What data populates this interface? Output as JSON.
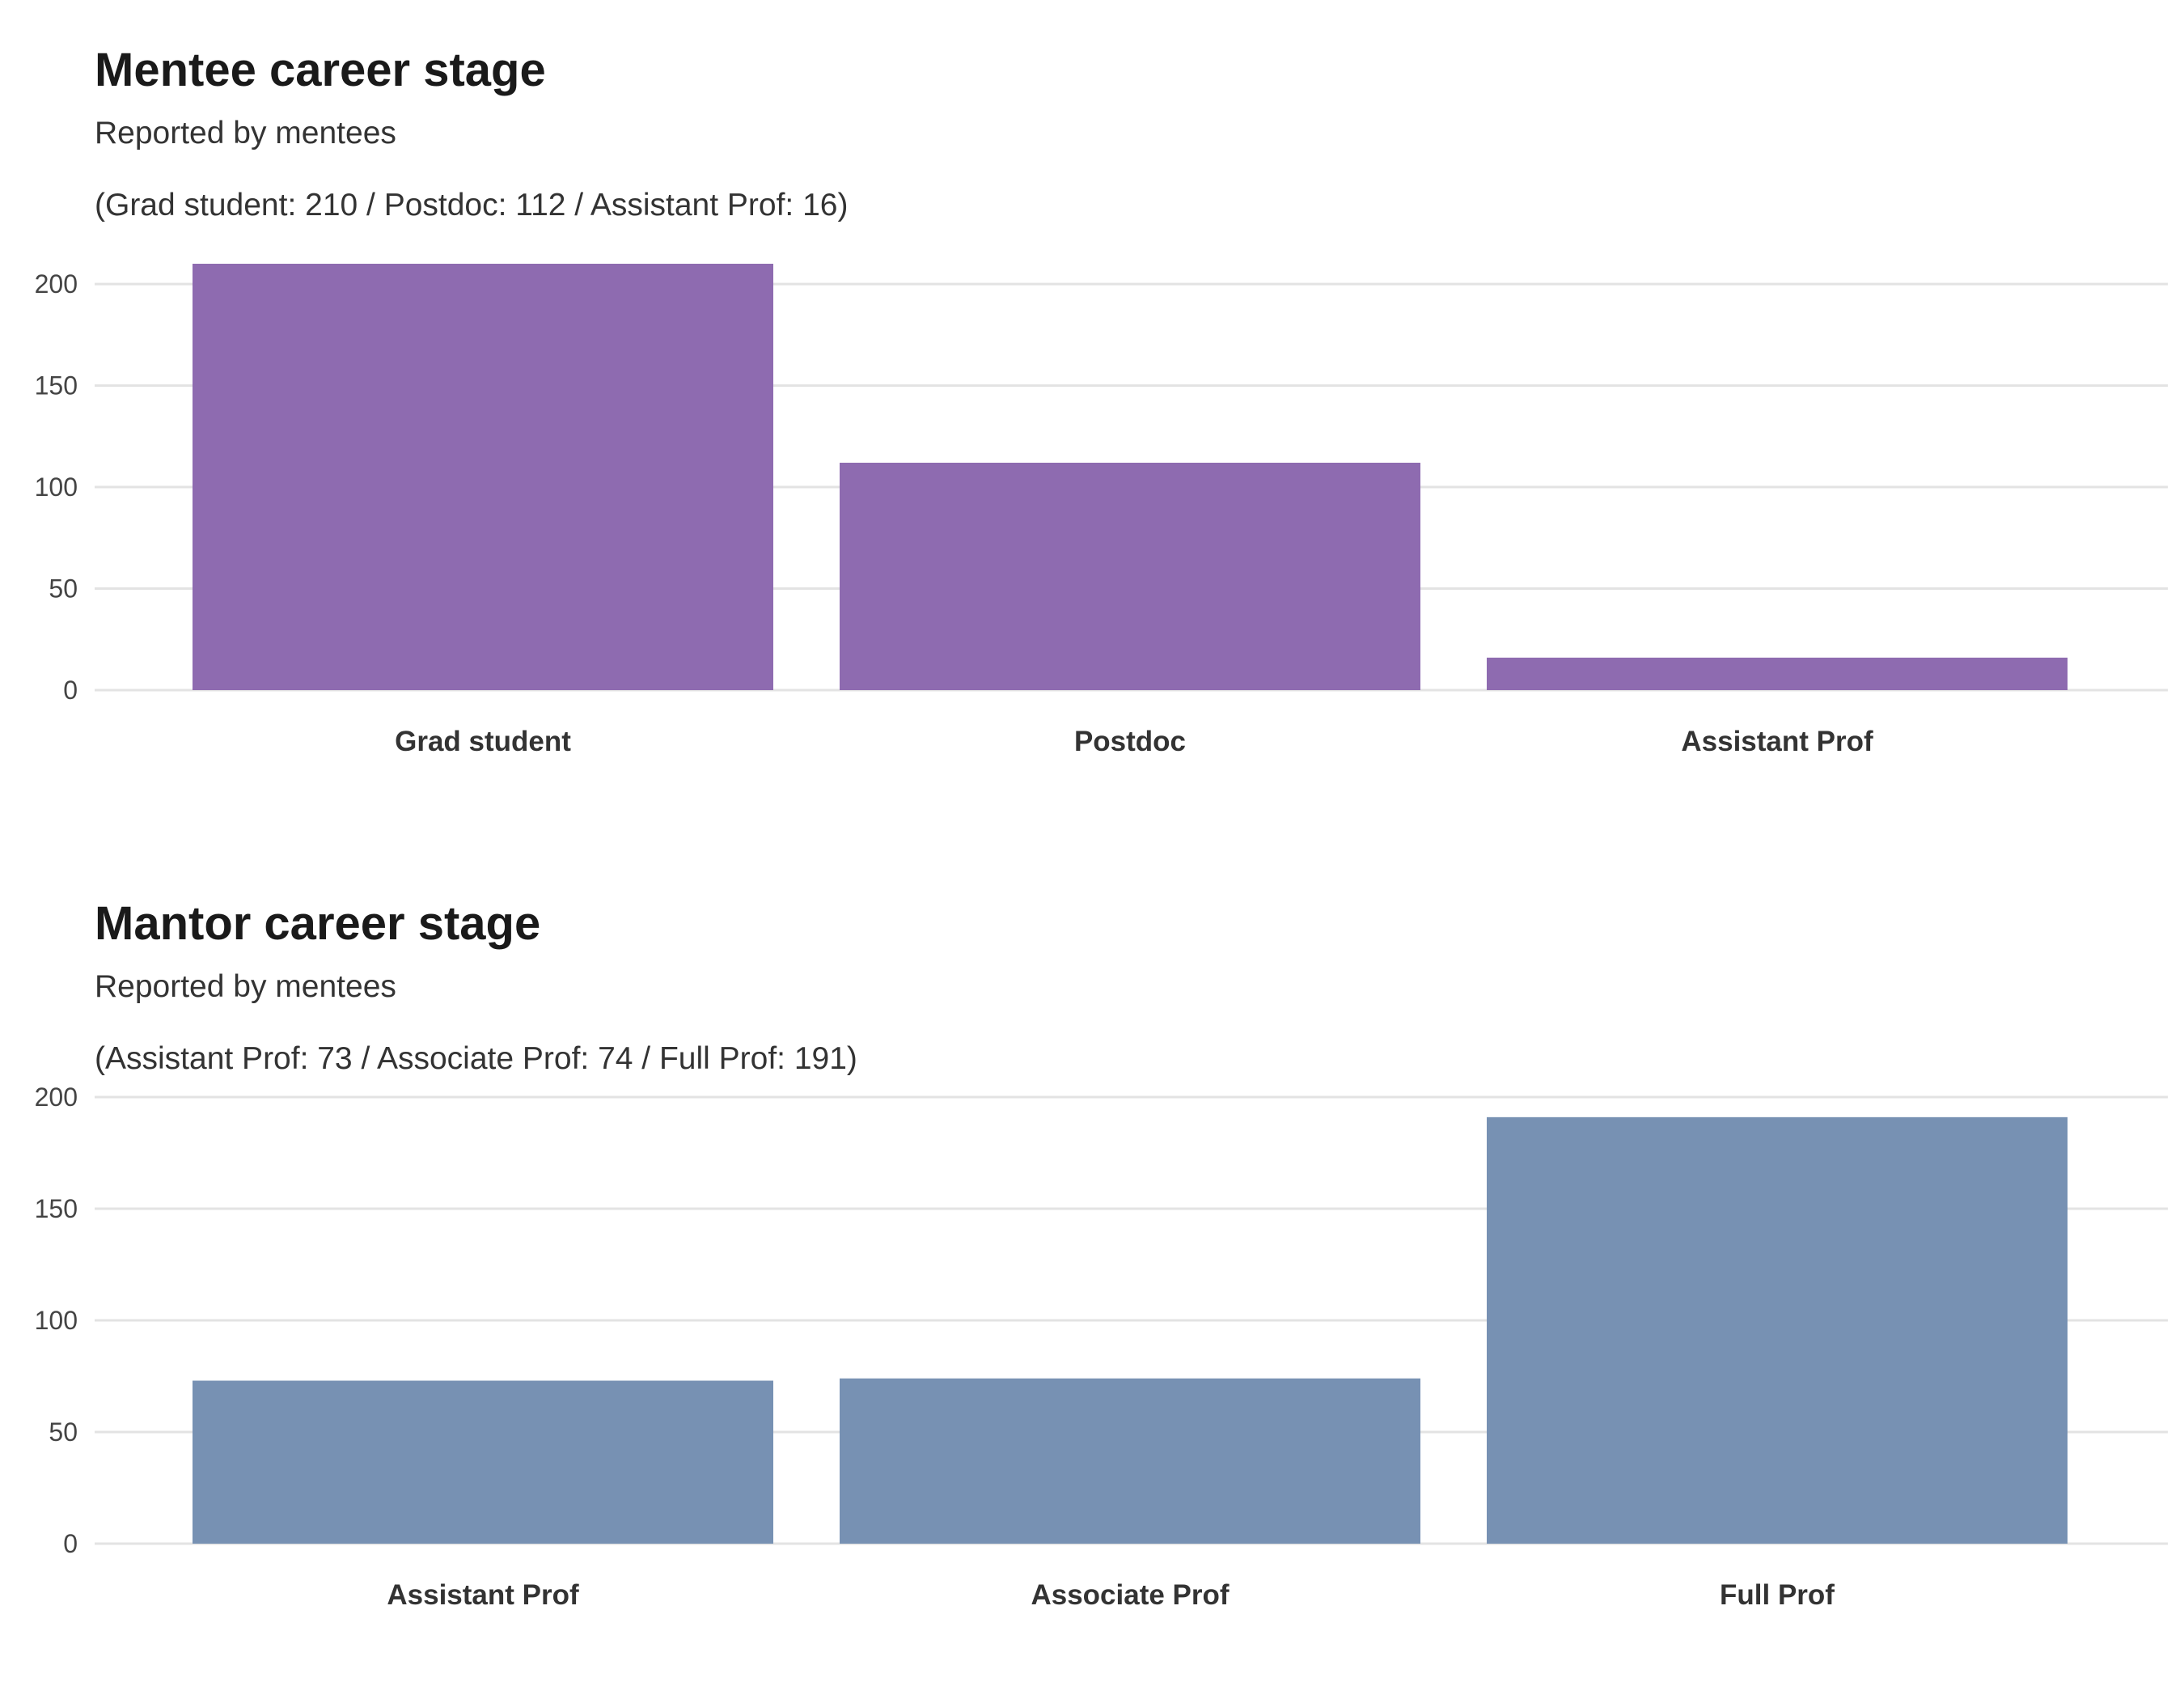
{
  "chart_data": [
    {
      "type": "bar",
      "title": "Mentee career stage",
      "subtitle": "Reported by mentees",
      "caption": "(Grad student: 210 / Postdoc: 112 / Assistant Prof: 16)",
      "categories": [
        "Grad student",
        "Postdoc",
        "Assistant Prof"
      ],
      "values": [
        210,
        112,
        16
      ],
      "ylim": [
        0,
        210
      ],
      "yticks": [
        0,
        50,
        100,
        150,
        200
      ],
      "xlabel": "",
      "ylabel": "",
      "grid": "horizontal",
      "legend": "none",
      "color": "#8e6bb0"
    },
    {
      "type": "bar",
      "title": "Mantor career stage",
      "subtitle": "Reported by mentees",
      "caption": "(Assistant Prof: 73 / Associate Prof: 74 / Full Prof: 191)",
      "categories": [
        "Assistant Prof",
        "Associate Prof",
        "Full Prof"
      ],
      "values": [
        73,
        74,
        191
      ],
      "ylim": [
        0,
        200
      ],
      "yticks": [
        0,
        50,
        100,
        150,
        200
      ],
      "xlabel": "",
      "ylabel": "",
      "grid": "horizontal",
      "legend": "none",
      "color": "#7791b3"
    }
  ]
}
